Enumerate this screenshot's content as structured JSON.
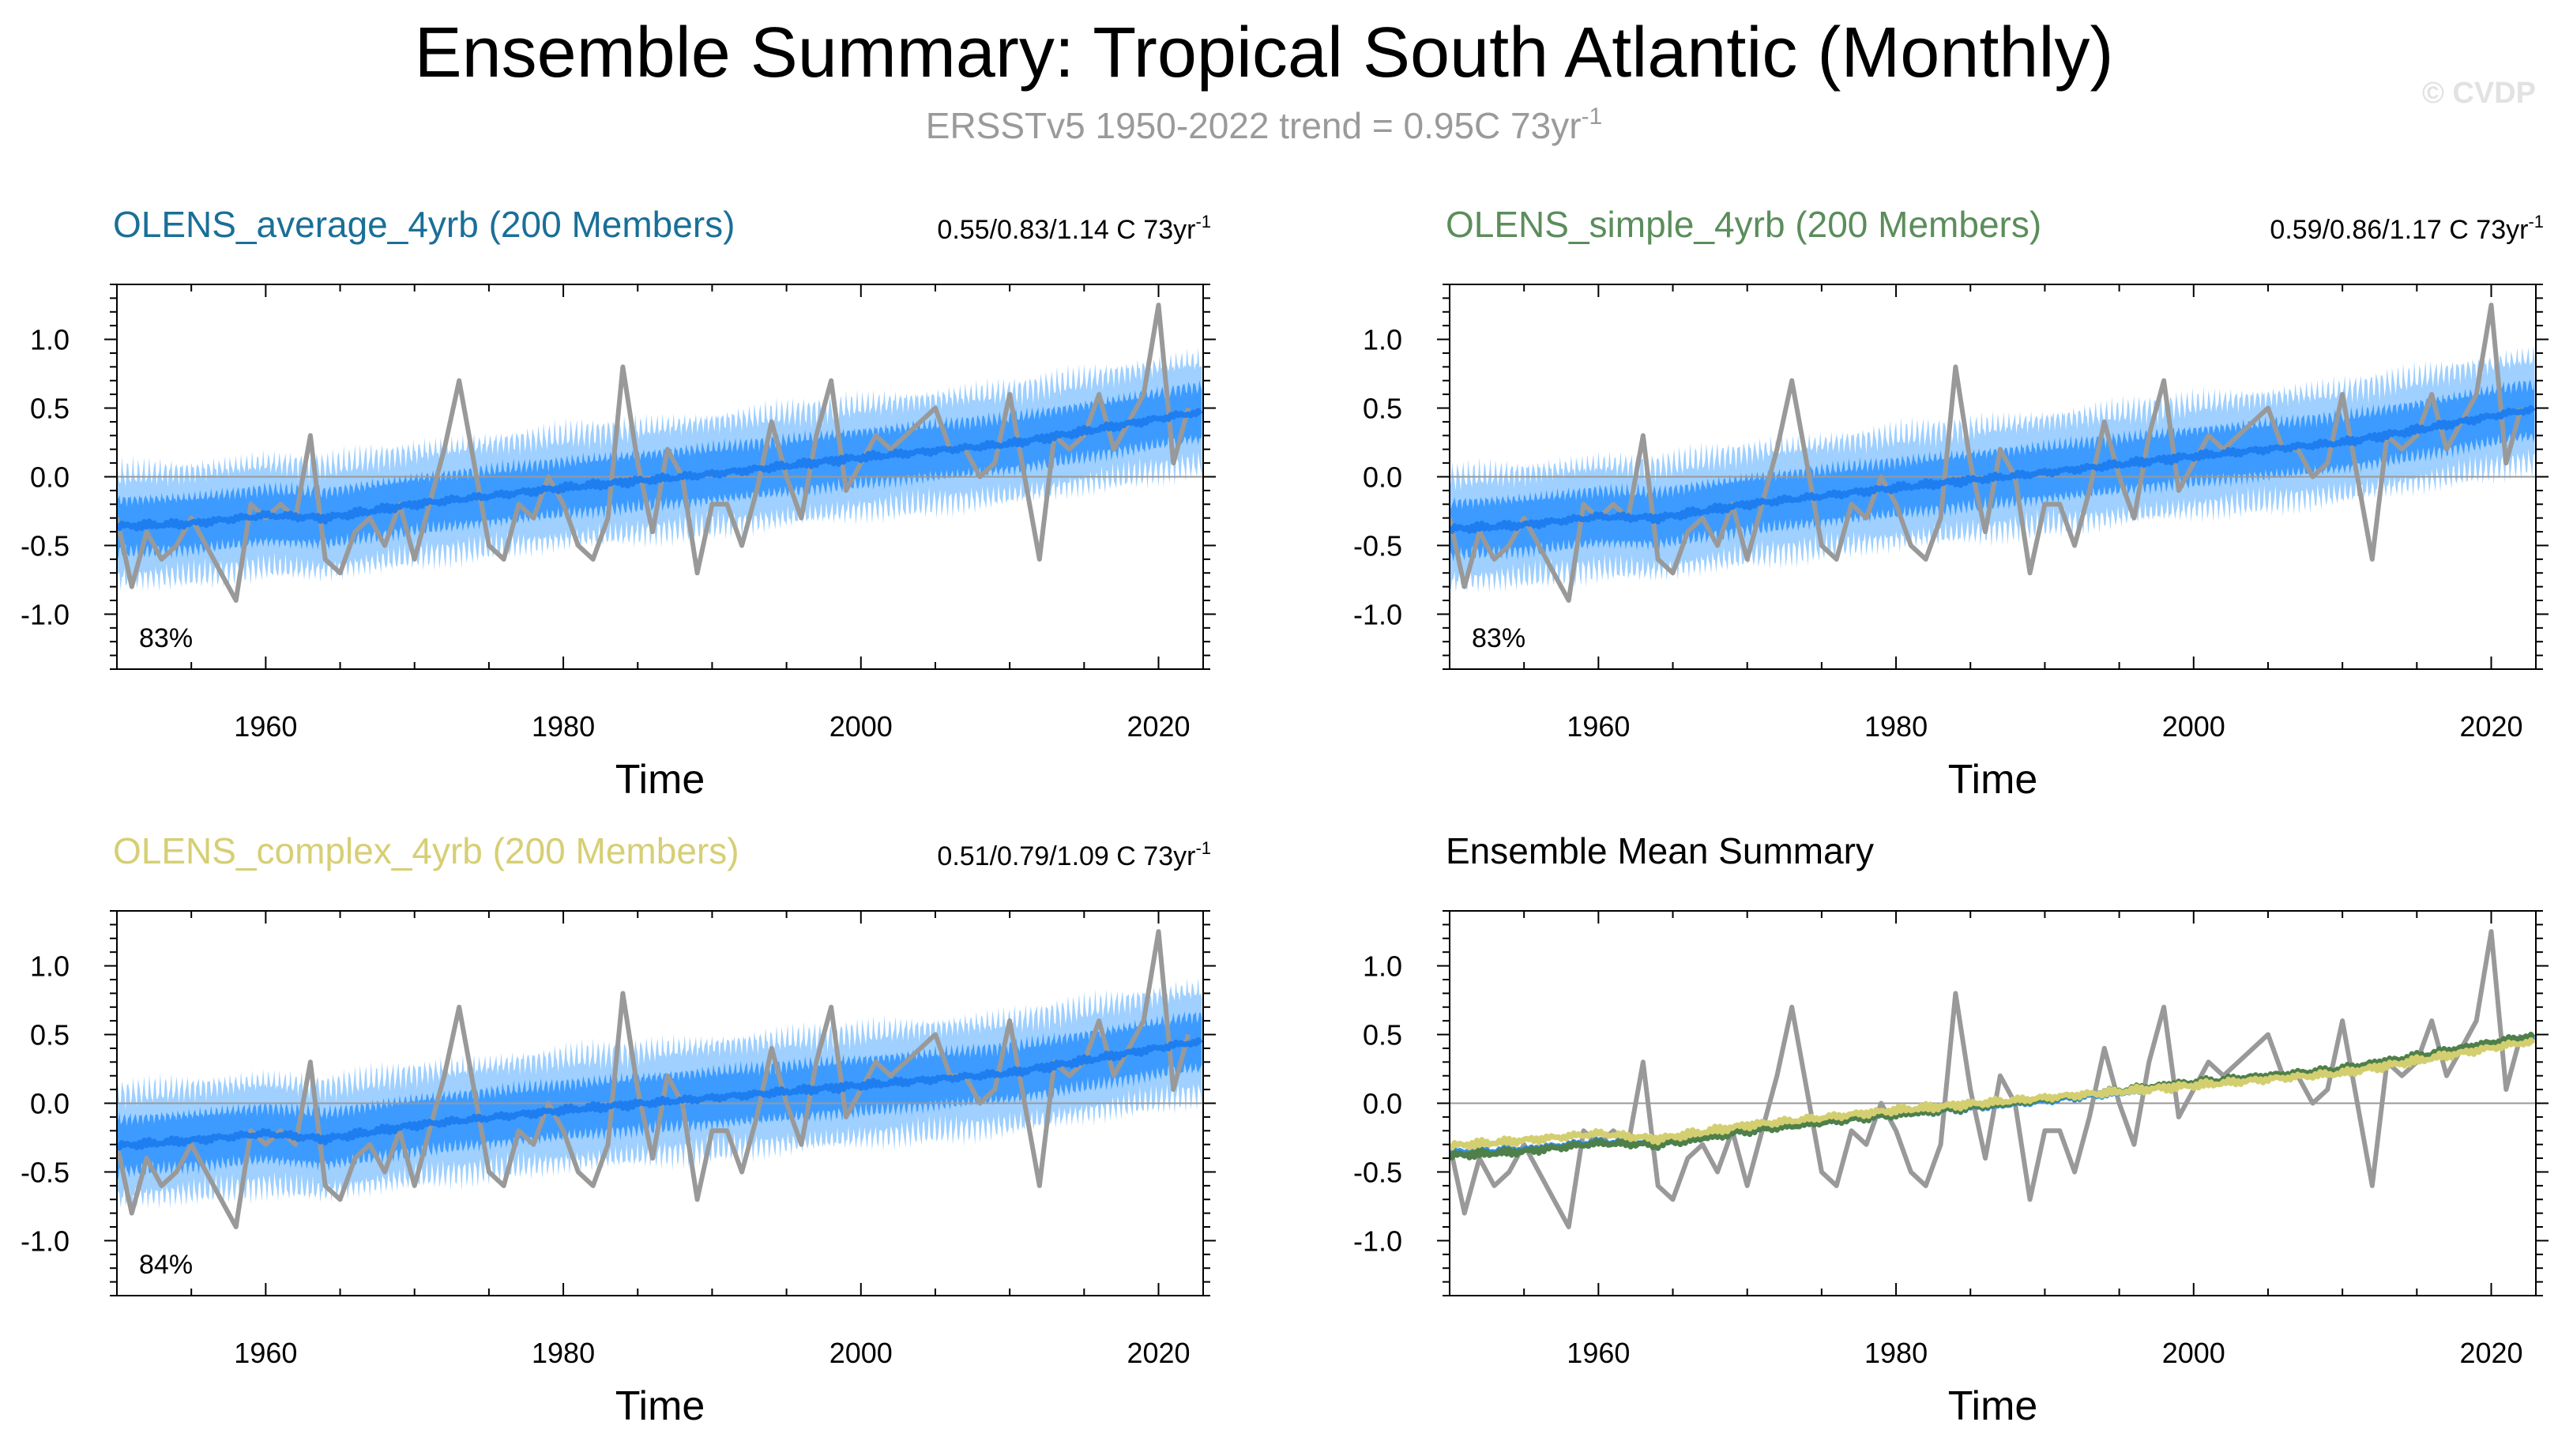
{
  "title": "Ensemble Summary: Tropical South Atlantic (Monthly)",
  "subtitle": {
    "prefix": "ERSSTv5 1950-2022 trend = 0.95C 73yr",
    "superscript": "-1"
  },
  "watermark": "© CVDP",
  "colors": {
    "observed": "#999999",
    "spread_outer": "#9fd0ff",
    "spread_inner": "#3d9bff",
    "ens_mean": "#1e7ef0",
    "title_average": "#1a6f98",
    "title_simple": "#5b8d5b",
    "title_complex": "#d6cf74",
    "mean_average": "#2f8fe8",
    "mean_simple": "#4f7f4a",
    "mean_complex": "#d3cf70",
    "zero_line": "#999999"
  },
  "chart_data": [
    {
      "type": "area",
      "panel": "OLENS_average_4yrb",
      "title": "OLENS_average_4yrb (200 Members)",
      "trend_label": {
        "prefix": "0.55/0.83/1.14 C 73yr",
        "superscript": "-1"
      },
      "percent_label": "83%",
      "xlabel": "Time",
      "xlim": [
        1950,
        2023
      ],
      "ylim": [
        -1.4,
        1.4
      ],
      "xticks": [
        1960,
        1980,
        2000,
        2020
      ],
      "yticks": [
        1.0,
        0.5,
        0.0,
        -0.5,
        -1.0
      ],
      "ytick_labels": [
        "1.0",
        "0.5",
        "0.0",
        "-0.5",
        "-1.0"
      ],
      "ens_mean_anchors": {
        "x": [
          1950,
          1955,
          1960,
          1964,
          1970,
          1980,
          1990,
          2000,
          2010,
          2015,
          2022
        ],
        "y": [
          -0.36,
          -0.34,
          -0.28,
          -0.3,
          -0.2,
          -0.08,
          0.02,
          0.14,
          0.24,
          0.33,
          0.46
        ]
      },
      "spread": {
        "outer_halfwidth": 0.38,
        "inner_halfwidth": 0.19
      },
      "observed": {
        "x": [
          1950,
          1951,
          1952,
          1953,
          1954,
          1955,
          1956,
          1957,
          1958,
          1959,
          1960,
          1961,
          1962,
          1963,
          1964,
          1965,
          1966,
          1967,
          1968,
          1969,
          1970,
          1971,
          1972,
          1973,
          1974,
          1975,
          1976,
          1977,
          1978,
          1979,
          1980,
          1981,
          1982,
          1983,
          1984,
          1985,
          1986,
          1987,
          1988,
          1989,
          1990,
          1991,
          1992,
          1993,
          1994,
          1995,
          1996,
          1997,
          1998,
          1999,
          2000,
          2001,
          2002,
          2003,
          2004,
          2005,
          2006,
          2007,
          2008,
          2009,
          2010,
          2011,
          2012,
          2013,
          2014,
          2015,
          2016,
          2017,
          2018,
          2019,
          2020,
          2021,
          2022
        ],
        "y": [
          -0.3,
          -0.8,
          -0.4,
          -0.6,
          -0.5,
          -0.3,
          -0.5,
          -0.7,
          -0.9,
          -0.2,
          -0.3,
          -0.2,
          -0.3,
          0.3,
          -0.6,
          -0.7,
          -0.4,
          -0.3,
          -0.5,
          -0.2,
          -0.6,
          -0.2,
          0.2,
          0.7,
          0.1,
          -0.5,
          -0.6,
          -0.2,
          -0.3,
          0.0,
          -0.2,
          -0.5,
          -0.6,
          -0.3,
          0.8,
          0.1,
          -0.4,
          0.2,
          0.0,
          -0.7,
          -0.2,
          -0.2,
          -0.5,
          -0.1,
          0.4,
          0.0,
          -0.3,
          0.3,
          0.7,
          -0.1,
          0.1,
          0.3,
          0.2,
          0.3,
          0.4,
          0.5,
          0.2,
          0.2,
          0.0,
          0.1,
          0.6,
          0.0,
          -0.6,
          0.3,
          0.2,
          0.3,
          0.6,
          0.2,
          0.4,
          0.6,
          1.25,
          0.1,
          0.5
        ]
      }
    },
    {
      "type": "area",
      "panel": "OLENS_simple_4yrb",
      "title": "OLENS_simple_4yrb (200 Members)",
      "trend_label": {
        "prefix": "0.59/0.86/1.17 C 73yr",
        "superscript": "-1"
      },
      "percent_label": "83%",
      "xlabel": "Time",
      "xlim": [
        1950,
        2023
      ],
      "ylim": [
        -1.4,
        1.4
      ],
      "xticks": [
        1960,
        1980,
        2000,
        2020
      ],
      "yticks": [
        1.0,
        0.5,
        0.0,
        -0.5,
        -1.0
      ],
      "ytick_labels": [
        "1.0",
        "0.5",
        "0.0",
        "-0.5",
        "-1.0"
      ],
      "ens_mean_anchors": {
        "x": [
          1950,
          1955,
          1960,
          1964,
          1970,
          1980,
          1990,
          2000,
          2010,
          2015,
          2022
        ],
        "y": [
          -0.38,
          -0.35,
          -0.29,
          -0.3,
          -0.2,
          -0.08,
          0.03,
          0.15,
          0.25,
          0.34,
          0.48
        ]
      },
      "spread": {
        "outer_halfwidth": 0.38,
        "inner_halfwidth": 0.19
      },
      "observed": {
        "x": [
          1950,
          1951,
          1952,
          1953,
          1954,
          1955,
          1956,
          1957,
          1958,
          1959,
          1960,
          1961,
          1962,
          1963,
          1964,
          1965,
          1966,
          1967,
          1968,
          1969,
          1970,
          1971,
          1972,
          1973,
          1974,
          1975,
          1976,
          1977,
          1978,
          1979,
          1980,
          1981,
          1982,
          1983,
          1984,
          1985,
          1986,
          1987,
          1988,
          1989,
          1990,
          1991,
          1992,
          1993,
          1994,
          1995,
          1996,
          1997,
          1998,
          1999,
          2000,
          2001,
          2002,
          2003,
          2004,
          2005,
          2006,
          2007,
          2008,
          2009,
          2010,
          2011,
          2012,
          2013,
          2014,
          2015,
          2016,
          2017,
          2018,
          2019,
          2020,
          2021,
          2022
        ],
        "y": [
          -0.3,
          -0.8,
          -0.4,
          -0.6,
          -0.5,
          -0.3,
          -0.5,
          -0.7,
          -0.9,
          -0.2,
          -0.3,
          -0.2,
          -0.3,
          0.3,
          -0.6,
          -0.7,
          -0.4,
          -0.3,
          -0.5,
          -0.2,
          -0.6,
          -0.2,
          0.2,
          0.7,
          0.1,
          -0.5,
          -0.6,
          -0.2,
          -0.3,
          0.0,
          -0.2,
          -0.5,
          -0.6,
          -0.3,
          0.8,
          0.1,
          -0.4,
          0.2,
          0.0,
          -0.7,
          -0.2,
          -0.2,
          -0.5,
          -0.1,
          0.4,
          0.0,
          -0.3,
          0.3,
          0.7,
          -0.1,
          0.1,
          0.3,
          0.2,
          0.3,
          0.4,
          0.5,
          0.2,
          0.2,
          0.0,
          0.1,
          0.6,
          0.0,
          -0.6,
          0.3,
          0.2,
          0.3,
          0.6,
          0.2,
          0.4,
          0.6,
          1.25,
          0.1,
          0.5
        ]
      }
    },
    {
      "type": "area",
      "panel": "OLENS_complex_4yrb",
      "title": "OLENS_complex_4yrb (200 Members)",
      "trend_label": {
        "prefix": "0.51/0.79/1.09 C 73yr",
        "superscript": "-1"
      },
      "percent_label": "84%",
      "xlabel": "Time",
      "xlim": [
        1950,
        2023
      ],
      "ylim": [
        -1.4,
        1.4
      ],
      "xticks": [
        1960,
        1980,
        2000,
        2020
      ],
      "yticks": [
        1.0,
        0.5,
        0.0,
        -0.5,
        -1.0
      ],
      "ytick_labels": [
        "1.0",
        "0.5",
        "0.0",
        "-0.5",
        "-1.0"
      ],
      "ens_mean_anchors": {
        "x": [
          1950,
          1955,
          1960,
          1964,
          1970,
          1980,
          1990,
          2000,
          2010,
          2015,
          2022
        ],
        "y": [
          -0.31,
          -0.27,
          -0.22,
          -0.26,
          -0.16,
          -0.05,
          0.04,
          0.13,
          0.22,
          0.31,
          0.44
        ]
      },
      "spread": {
        "outer_halfwidth": 0.38,
        "inner_halfwidth": 0.19
      },
      "observed": {
        "x": [
          1950,
          1951,
          1952,
          1953,
          1954,
          1955,
          1956,
          1957,
          1958,
          1959,
          1960,
          1961,
          1962,
          1963,
          1964,
          1965,
          1966,
          1967,
          1968,
          1969,
          1970,
          1971,
          1972,
          1973,
          1974,
          1975,
          1976,
          1977,
          1978,
          1979,
          1980,
          1981,
          1982,
          1983,
          1984,
          1985,
          1986,
          1987,
          1988,
          1989,
          1990,
          1991,
          1992,
          1993,
          1994,
          1995,
          1996,
          1997,
          1998,
          1999,
          2000,
          2001,
          2002,
          2003,
          2004,
          2005,
          2006,
          2007,
          2008,
          2009,
          2010,
          2011,
          2012,
          2013,
          2014,
          2015,
          2016,
          2017,
          2018,
          2019,
          2020,
          2021,
          2022
        ],
        "y": [
          -0.3,
          -0.8,
          -0.4,
          -0.6,
          -0.5,
          -0.3,
          -0.5,
          -0.7,
          -0.9,
          -0.2,
          -0.3,
          -0.2,
          -0.3,
          0.3,
          -0.6,
          -0.7,
          -0.4,
          -0.3,
          -0.5,
          -0.2,
          -0.6,
          -0.2,
          0.2,
          0.7,
          0.1,
          -0.5,
          -0.6,
          -0.2,
          -0.3,
          0.0,
          -0.2,
          -0.5,
          -0.6,
          -0.3,
          0.8,
          0.1,
          -0.4,
          0.2,
          0.0,
          -0.7,
          -0.2,
          -0.2,
          -0.5,
          -0.1,
          0.4,
          0.0,
          -0.3,
          0.3,
          0.7,
          -0.1,
          0.1,
          0.3,
          0.2,
          0.3,
          0.4,
          0.5,
          0.2,
          0.2,
          0.0,
          0.1,
          0.6,
          0.0,
          -0.6,
          0.3,
          0.2,
          0.3,
          0.6,
          0.2,
          0.4,
          0.6,
          1.25,
          0.1,
          0.5
        ]
      }
    },
    {
      "type": "line",
      "panel": "Ensemble Mean Summary",
      "title": "Ensemble Mean Summary",
      "xlabel": "Time",
      "xlim": [
        1950,
        2023
      ],
      "ylim": [
        -1.4,
        1.4
      ],
      "xticks": [
        1960,
        1980,
        2000,
        2020
      ],
      "yticks": [
        1.0,
        0.5,
        0.0,
        -0.5,
        -1.0
      ],
      "ytick_labels": [
        "1.0",
        "0.5",
        "0.0",
        "-0.5",
        "-1.0"
      ],
      "series": [
        {
          "name": "OLENS_average_4yrb",
          "x": [
            1950,
            1955,
            1960,
            1964,
            1970,
            1980,
            1990,
            2000,
            2010,
            2015,
            2022
          ],
          "y": [
            -0.36,
            -0.34,
            -0.28,
            -0.3,
            -0.2,
            -0.08,
            0.02,
            0.14,
            0.24,
            0.33,
            0.46
          ]
        },
        {
          "name": "OLENS_simple_4yrb",
          "x": [
            1950,
            1955,
            1960,
            1964,
            1970,
            1980,
            1990,
            2000,
            2010,
            2015,
            2022
          ],
          "y": [
            -0.38,
            -0.35,
            -0.29,
            -0.3,
            -0.2,
            -0.08,
            0.03,
            0.15,
            0.25,
            0.34,
            0.48
          ]
        },
        {
          "name": "OLENS_complex_4yrb",
          "x": [
            1950,
            1955,
            1960,
            1964,
            1970,
            1980,
            1990,
            2000,
            2010,
            2015,
            2022
          ],
          "y": [
            -0.31,
            -0.27,
            -0.22,
            -0.26,
            -0.16,
            -0.05,
            0.04,
            0.13,
            0.22,
            0.31,
            0.44
          ]
        }
      ],
      "observed": {
        "x": [
          1950,
          1951,
          1952,
          1953,
          1954,
          1955,
          1956,
          1957,
          1958,
          1959,
          1960,
          1961,
          1962,
          1963,
          1964,
          1965,
          1966,
          1967,
          1968,
          1969,
          1970,
          1971,
          1972,
          1973,
          1974,
          1975,
          1976,
          1977,
          1978,
          1979,
          1980,
          1981,
          1982,
          1983,
          1984,
          1985,
          1986,
          1987,
          1988,
          1989,
          1990,
          1991,
          1992,
          1993,
          1994,
          1995,
          1996,
          1997,
          1998,
          1999,
          2000,
          2001,
          2002,
          2003,
          2004,
          2005,
          2006,
          2007,
          2008,
          2009,
          2010,
          2011,
          2012,
          2013,
          2014,
          2015,
          2016,
          2017,
          2018,
          2019,
          2020,
          2021,
          2022
        ],
        "y": [
          -0.3,
          -0.8,
          -0.4,
          -0.6,
          -0.5,
          -0.3,
          -0.5,
          -0.7,
          -0.9,
          -0.2,
          -0.3,
          -0.2,
          -0.3,
          0.3,
          -0.6,
          -0.7,
          -0.4,
          -0.3,
          -0.5,
          -0.2,
          -0.6,
          -0.2,
          0.2,
          0.7,
          0.1,
          -0.5,
          -0.6,
          -0.2,
          -0.3,
          0.0,
          -0.2,
          -0.5,
          -0.6,
          -0.3,
          0.8,
          0.1,
          -0.4,
          0.2,
          0.0,
          -0.7,
          -0.2,
          -0.2,
          -0.5,
          -0.1,
          0.4,
          0.0,
          -0.3,
          0.3,
          0.7,
          -0.1,
          0.1,
          0.3,
          0.2,
          0.3,
          0.4,
          0.5,
          0.2,
          0.2,
          0.0,
          0.1,
          0.6,
          0.0,
          -0.6,
          0.3,
          0.2,
          0.3,
          0.6,
          0.2,
          0.4,
          0.6,
          1.25,
          0.1,
          0.5
        ]
      }
    }
  ]
}
